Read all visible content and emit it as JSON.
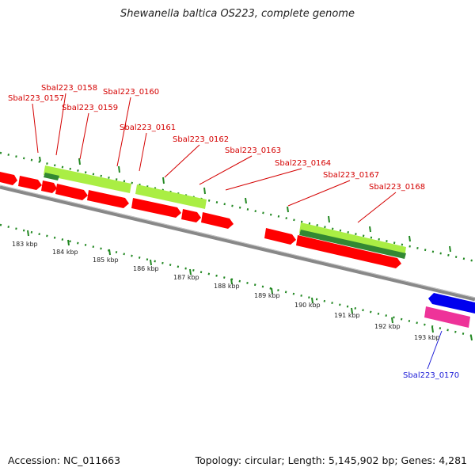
{
  "title": "Shewanella baltica OS223, complete genome",
  "accession": "Accession: NC_011663",
  "summary": "Topology: circular; Length: 5,145,902 bp; Genes: 4,281",
  "gene_labels": [
    {
      "text": "Sbal223_0157",
      "color": "red"
    },
    {
      "text": "Sbal223_0158",
      "color": "red"
    },
    {
      "text": "Sbal223_0159",
      "color": "red"
    },
    {
      "text": "Sbal223_0160",
      "color": "red"
    },
    {
      "text": "Sbal223_0161",
      "color": "red"
    },
    {
      "text": "Sbal223_0162",
      "color": "red"
    },
    {
      "text": "Sbal223_0163",
      "color": "red"
    },
    {
      "text": "Sbal223_0164",
      "color": "red"
    },
    {
      "text": "Sbal223_0167",
      "color": "red"
    },
    {
      "text": "Sbal223_0168",
      "color": "red"
    },
    {
      "text": "Sbal223_0170",
      "color": "blue"
    }
  ],
  "kbp_labels": [
    "183 kbp",
    "184 kbp",
    "185 kbp",
    "186 kbp",
    "187 kbp",
    "188 kbp",
    "189 kbp",
    "190 kbp",
    "191 kbp",
    "192 kbp",
    "193 kbp"
  ],
  "colors": {
    "cds": "#ff0000",
    "gene": "#aaee44",
    "gene_dark": "#338833",
    "reverse_cds": "#0000ee",
    "reverse_gene": "#ee3399",
    "backbone": "#888888",
    "ticks": "#228822"
  }
}
